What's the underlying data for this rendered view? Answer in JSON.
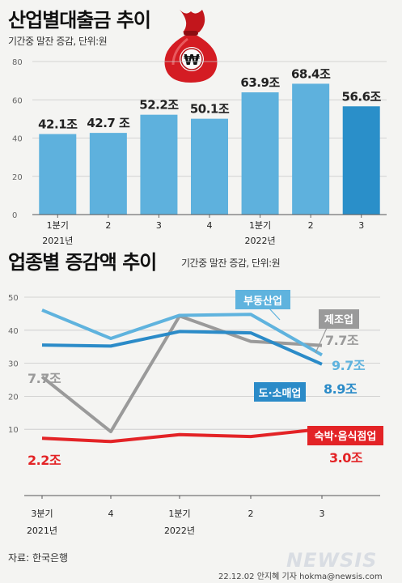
{
  "top": {
    "title": "산업별대출금 추이",
    "subtitle": "기간중 말잔 증감, 단위:원",
    "logo_symbol": "₩"
  },
  "bottom": {
    "title": "업종별 증감액 추이",
    "subtitle": "기간중 말잔 증감, 단위:원"
  },
  "footer": {
    "source": "자료: 한국은행",
    "byline": "22.12.02 안지혜 기자 hokma@newsis.com",
    "logo": "NEWSIS"
  },
  "colors": {
    "bar": "#5eb1dd",
    "bar_highlight": "#2a8fc9",
    "realestate": "#5fb3de",
    "wholesale": "#2b8bc8",
    "manufacturing": "#9a9a9a",
    "accommodation": "#e32326"
  },
  "chart_data": [
    {
      "type": "bar",
      "categories": [
        "1분기",
        "2",
        "3",
        "4",
        "1분기",
        "2",
        "3"
      ],
      "group_labels": [
        "2021년",
        "2022년"
      ],
      "values": [
        42.1,
        42.7,
        52.2,
        50.1,
        63.9,
        68.4,
        56.6
      ],
      "value_labels": [
        "42.1조",
        "42.7 조",
        "52.2조",
        "50.1조",
        "63.9조",
        "68.4조",
        "56.6조"
      ],
      "highlight_index": 6,
      "ylim": [
        0,
        80
      ],
      "yticks": [
        0,
        20,
        40,
        60,
        80
      ],
      "grid": true
    },
    {
      "type": "line",
      "x": [
        "3분기",
        "4",
        "1분기",
        "2",
        "3"
      ],
      "group_labels": [
        "2021년",
        "2022년"
      ],
      "ylim": [
        0,
        50
      ],
      "yticks": [
        10,
        20,
        30,
        40,
        50
      ],
      "grid": true,
      "series": [
        {
          "name": "부동산업",
          "values": [
            46.1,
            37.5,
            44.5,
            44.8,
            32.5
          ],
          "end_label": "9.7조"
        },
        {
          "name": "도·소매업",
          "values": [
            35.5,
            35.2,
            39.6,
            39.2,
            29.7
          ],
          "end_label": "8.9조"
        },
        {
          "name": "제조업",
          "values": [
            25.9,
            9.3,
            44.3,
            36.6,
            35.4
          ],
          "start_label": "7.7조",
          "end_label": "7.7조"
        },
        {
          "name": "숙박·음식점업",
          "values": [
            7.3,
            6.3,
            8.4,
            7.8,
            10.1
          ],
          "start_label": "2.2조",
          "end_label": "3.0조"
        }
      ]
    }
  ]
}
